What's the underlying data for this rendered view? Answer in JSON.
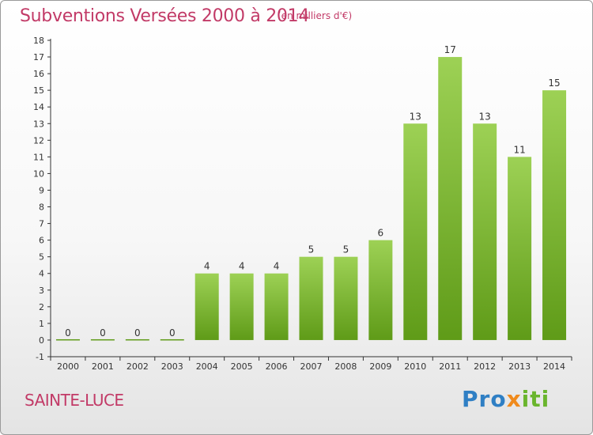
{
  "header": {
    "title": "Subventions Versées 2000 à 2014",
    "unit": "(en milliers d'€)"
  },
  "footer": {
    "place": "SAINTE-LUCE",
    "brand_parts": [
      "Pro",
      "x",
      "iti"
    ]
  },
  "colors": {
    "title": "#c23a67",
    "bar_light": "#9dd155",
    "bar_dark": "#5f9b18",
    "axis": "#333333"
  },
  "chart_data": {
    "type": "bar",
    "categories": [
      "2000",
      "2001",
      "2002",
      "2003",
      "2004",
      "2005",
      "2006",
      "2007",
      "2008",
      "2009",
      "2010",
      "2011",
      "2012",
      "2013",
      "2014"
    ],
    "values": [
      0,
      0,
      0,
      0,
      4,
      4,
      4,
      5,
      5,
      6,
      13,
      17,
      13,
      11,
      15
    ],
    "data_labels": [
      "0",
      "0",
      "0",
      "0",
      "4",
      "4",
      "4",
      "5",
      "5",
      "6",
      "13",
      "17",
      "13",
      "11",
      "15"
    ],
    "y_ticks": [
      -1,
      0,
      1,
      2,
      3,
      4,
      5,
      6,
      7,
      8,
      9,
      10,
      11,
      12,
      13,
      14,
      15,
      16,
      17,
      18
    ],
    "ylim": [
      -1,
      18
    ],
    "grid": false,
    "legend": "none"
  }
}
